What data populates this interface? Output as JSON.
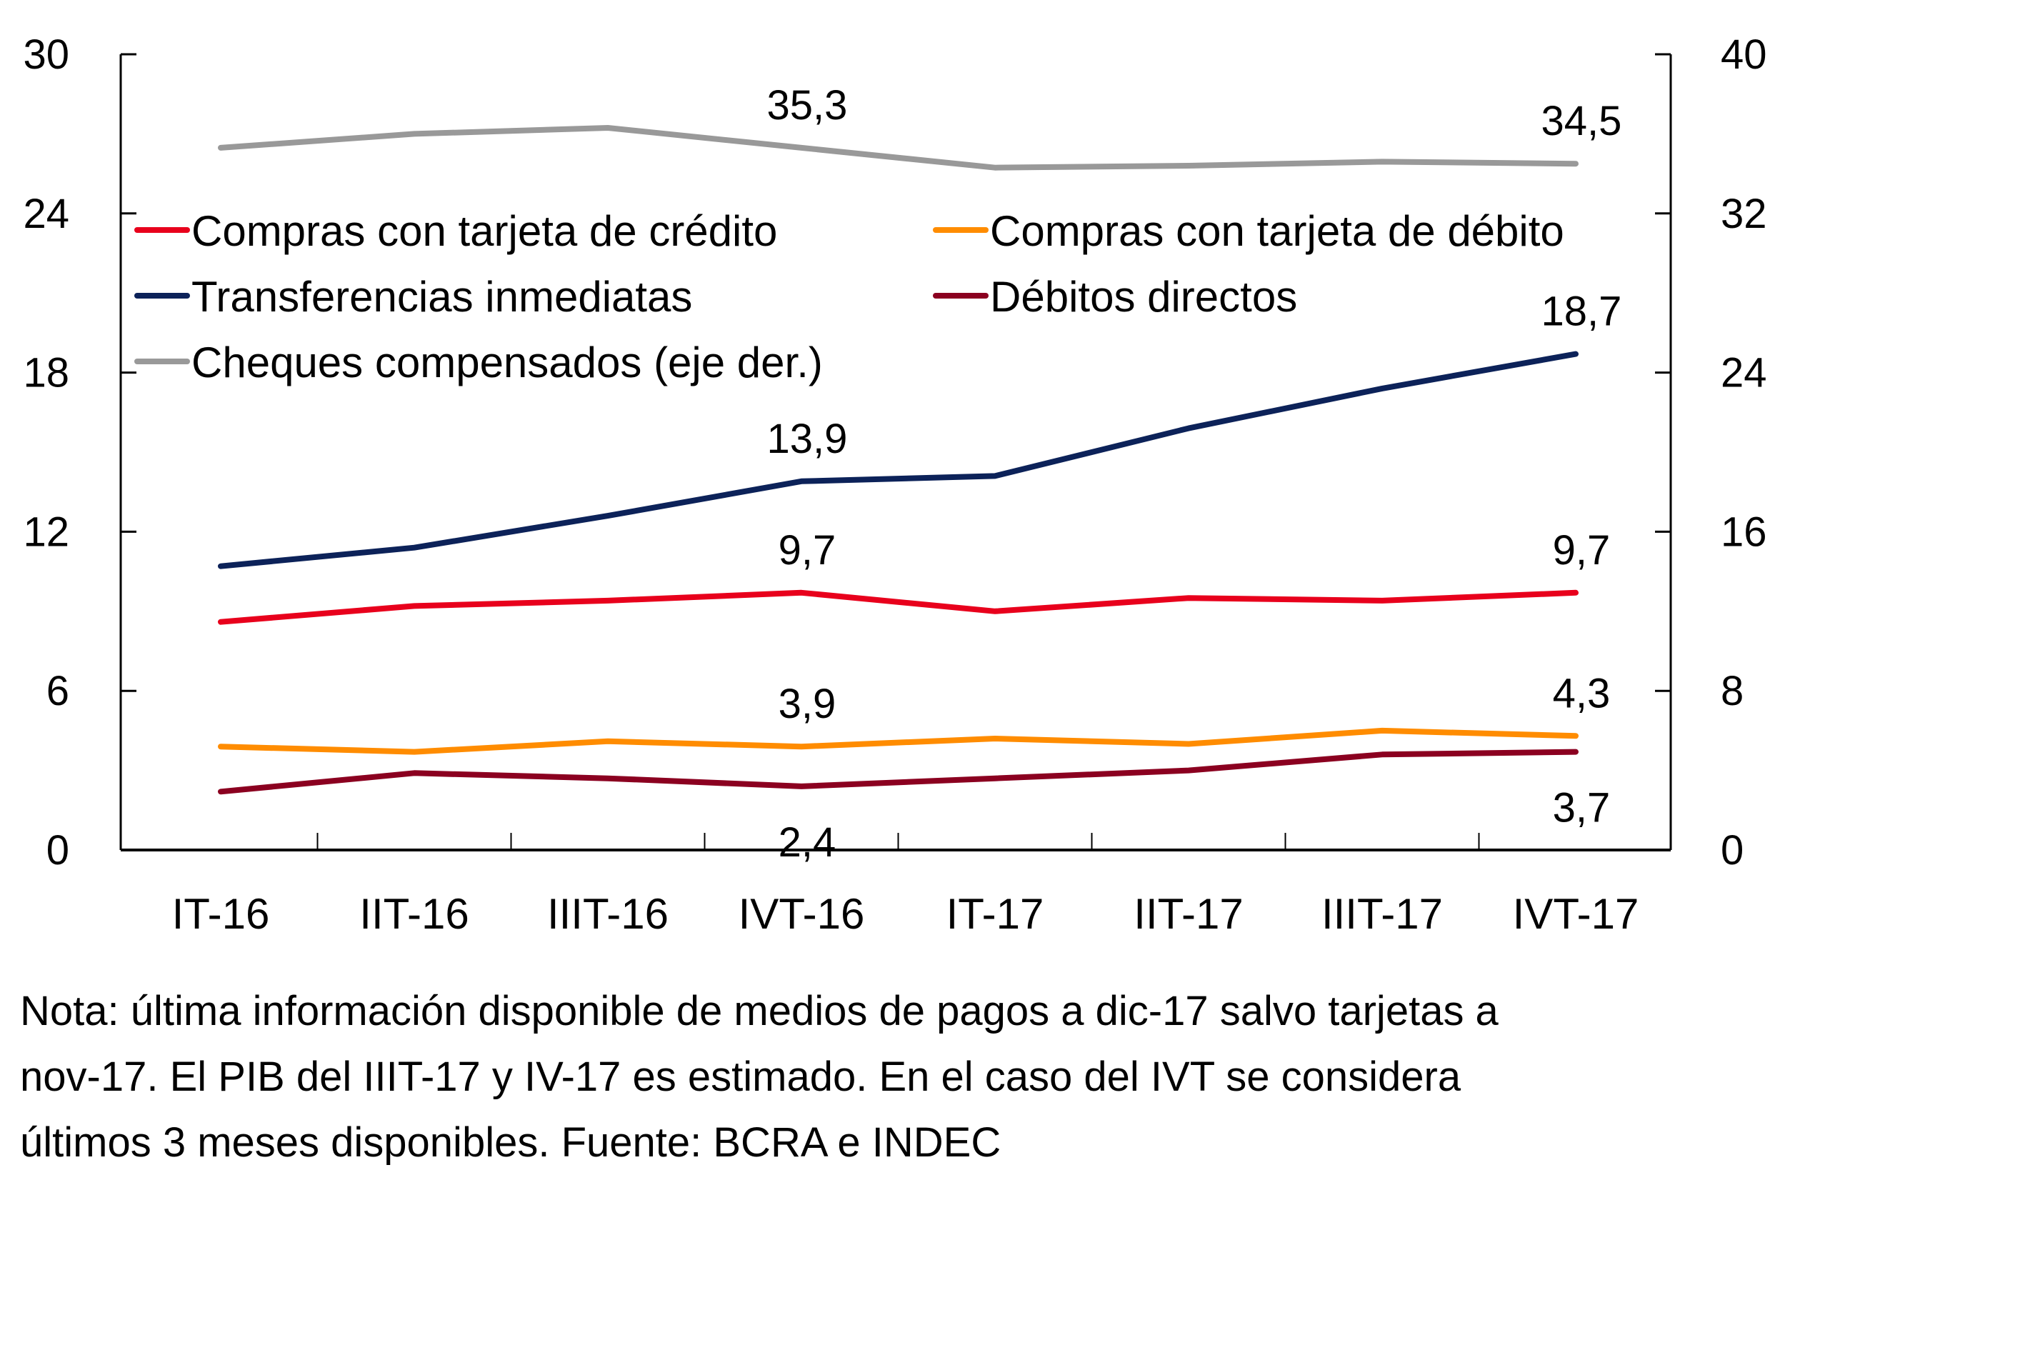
{
  "chart_data": {
    "type": "line",
    "title": "",
    "xlabel": "",
    "ylabel": "",
    "categories": [
      "IT-16",
      "IIT-16",
      "IIIT-16",
      "IVT-16",
      "IT-17",
      "IIT-17",
      "IIIT-17",
      "IVT-17"
    ],
    "y_left": {
      "ylim": [
        0,
        30
      ],
      "ticks": [
        0,
        6,
        12,
        18,
        24,
        30
      ]
    },
    "y_right": {
      "ylim": [
        0,
        40
      ],
      "ticks": [
        0,
        8,
        16,
        24,
        32,
        40
      ]
    },
    "grid": false,
    "legend_position": "upper-left, inside plot, two columns",
    "series": [
      {
        "name": "Compras con tarjeta de crédito",
        "axis": "left",
        "color": "#E8001C",
        "values": [
          8.6,
          9.2,
          9.4,
          9.7,
          9.0,
          9.5,
          9.4,
          9.7
        ],
        "labels": [
          {
            "index": 3,
            "text": "9,7",
            "pos": "above"
          },
          {
            "index": 7,
            "text": "9,7",
            "pos": "above"
          }
        ]
      },
      {
        "name": "Compras con tarjeta de débito",
        "axis": "left",
        "color": "#FF8C00",
        "values": [
          3.9,
          3.7,
          4.1,
          3.9,
          4.2,
          4.0,
          4.5,
          4.3
        ],
        "labels": [
          {
            "index": 3,
            "text": "3,9",
            "pos": "above"
          },
          {
            "index": 7,
            "text": "4,3",
            "pos": "above"
          }
        ]
      },
      {
        "name": "Transferencias inmediatas",
        "axis": "left",
        "color": "#0C2259",
        "values": [
          10.7,
          11.4,
          12.6,
          13.9,
          14.1,
          15.9,
          17.4,
          18.7
        ],
        "labels": [
          {
            "index": 3,
            "text": "13,9",
            "pos": "above"
          },
          {
            "index": 7,
            "text": "18,7",
            "pos": "above"
          }
        ]
      },
      {
        "name": "Débitos directos",
        "axis": "left",
        "color": "#8B0020",
        "values": [
          2.2,
          2.9,
          2.7,
          2.4,
          2.7,
          3.0,
          3.6,
          3.7
        ],
        "labels": [
          {
            "index": 3,
            "text": "2,4",
            "pos": "below"
          },
          {
            "index": 7,
            "text": "3,7",
            "pos": "below"
          }
        ]
      },
      {
        "name": "Cheques compensados (eje der.)",
        "axis": "right",
        "color": "#999999",
        "values": [
          35.3,
          36.0,
          36.3,
          35.3,
          34.3,
          34.4,
          34.6,
          34.5
        ],
        "labels": [
          {
            "index": 3,
            "text": "35,3",
            "pos": "above"
          },
          {
            "index": 7,
            "text": "34,5",
            "pos": "above"
          }
        ]
      }
    ],
    "legend_order": [
      0,
      1,
      2,
      3,
      4
    ]
  },
  "note": {
    "lines": [
      "Nota: última información disponible de medios de pagos a dic-17 salvo tarjetas a",
      "nov-17. El PIB del IIIT-17 y IV-17 es estimado. En el caso del IVT se considera",
      "últimos 3 meses disponibles. Fuente: BCRA e INDEC"
    ]
  }
}
